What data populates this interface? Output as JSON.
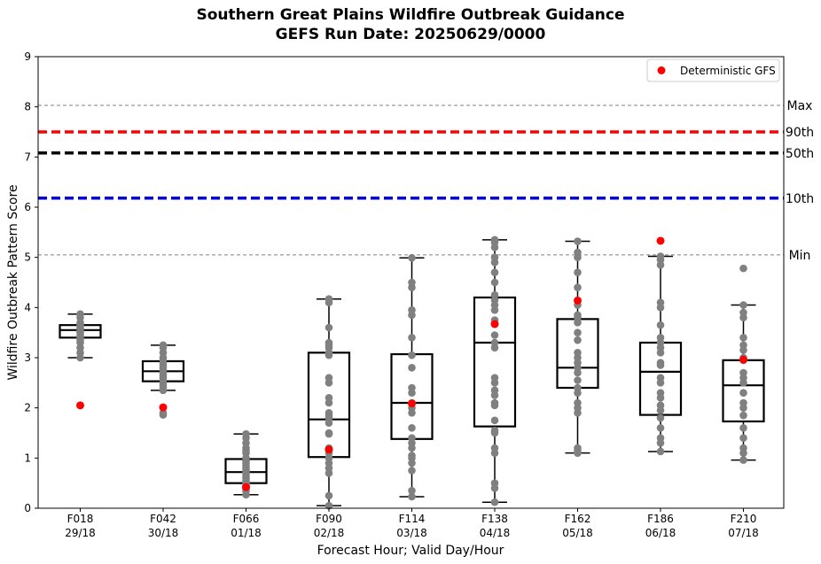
{
  "chart_data": {
    "type": "box",
    "title": "Southern Great Plains Wildfire Outbreak Guidance",
    "subtitle": "GEFS Run Date: 20250629/0000",
    "xlabel": "Forecast Hour; Valid Day/Hour",
    "ylabel": "Wildfire Outbreak Pattern Score",
    "ylim": [
      0,
      9
    ],
    "yticks": [
      "0",
      "1",
      "2",
      "3",
      "4",
      "5",
      "6",
      "7",
      "8",
      "9"
    ],
    "grid": false,
    "legend_position": "top-right",
    "categories": [
      [
        "F018",
        "29/18"
      ],
      [
        "F042",
        "30/18"
      ],
      [
        "F066",
        "01/18"
      ],
      [
        "F090",
        "02/18"
      ],
      [
        "F114",
        "03/18"
      ],
      [
        "F138",
        "04/18"
      ],
      [
        "F162",
        "05/18"
      ],
      [
        "F186",
        "06/18"
      ],
      [
        "F210",
        "07/18"
      ]
    ],
    "reference_lines": [
      {
        "label": "Max",
        "value": 8.03,
        "color": "#808080",
        "style": "thin-dashed"
      },
      {
        "label": "90th",
        "value": 7.5,
        "color": "#ff0000",
        "style": "thick-dashed"
      },
      {
        "label": "50th",
        "value": 7.08,
        "color": "#000000",
        "style": "thick-dashed"
      },
      {
        "label": "10th",
        "value": 6.18,
        "color": "#0000cd",
        "style": "thick-dashed"
      },
      {
        "label": "Min",
        "value": 5.05,
        "color": "#808080",
        "style": "thin-dashed"
      }
    ],
    "boxes": [
      {
        "whislo": 3.0,
        "q1": 3.4,
        "med": 3.55,
        "q3": 3.65,
        "whishi": 3.87
      },
      {
        "whislo": 2.35,
        "q1": 2.53,
        "med": 2.73,
        "q3": 2.93,
        "whishi": 3.25
      },
      {
        "whislo": 0.27,
        "q1": 0.5,
        "med": 0.72,
        "q3": 0.98,
        "whishi": 1.48
      },
      {
        "whislo": 0.05,
        "q1": 1.02,
        "med": 1.77,
        "q3": 3.1,
        "whishi": 4.17
      },
      {
        "whislo": 0.23,
        "q1": 1.38,
        "med": 2.1,
        "q3": 3.07,
        "whishi": 4.99
      },
      {
        "whislo": 0.12,
        "q1": 1.63,
        "med": 3.3,
        "q3": 4.2,
        "whishi": 5.35
      },
      {
        "whislo": 1.1,
        "q1": 2.4,
        "med": 2.8,
        "q3": 3.77,
        "whishi": 5.32
      },
      {
        "whislo": 1.13,
        "q1": 1.86,
        "med": 2.72,
        "q3": 3.3,
        "whishi": 5.02
      },
      {
        "whislo": 0.96,
        "q1": 1.73,
        "med": 2.45,
        "q3": 2.95,
        "whishi": 4.05
      }
    ],
    "members": [
      [
        3.87,
        3.8,
        3.7,
        3.65,
        3.6,
        3.58,
        3.55,
        3.52,
        3.5,
        3.45,
        3.4,
        3.35,
        3.3,
        3.2,
        3.1,
        3.0
      ],
      [
        3.25,
        3.2,
        3.1,
        3.0,
        2.95,
        2.9,
        2.85,
        2.8,
        2.75,
        2.7,
        2.65,
        2.6,
        2.55,
        2.5,
        2.45,
        2.4,
        2.35,
        1.9,
        1.86
      ],
      [
        1.48,
        1.4,
        1.3,
        1.2,
        1.15,
        1.1,
        1.0,
        0.95,
        0.9,
        0.85,
        0.8,
        0.75,
        0.72,
        0.7,
        0.65,
        0.6,
        0.55,
        0.5,
        0.45,
        0.4,
        0.35,
        0.27
      ],
      [
        4.17,
        4.1,
        3.6,
        3.3,
        3.25,
        3.2,
        3.1,
        3.05,
        2.6,
        2.5,
        2.2,
        2.1,
        1.9,
        1.85,
        1.8,
        1.7,
        1.5,
        1.48,
        1.2,
        1.1,
        1.0,
        0.9,
        0.8,
        0.7,
        0.25,
        0.05
      ],
      [
        4.99,
        4.5,
        4.4,
        3.95,
        3.85,
        3.4,
        3.05,
        2.8,
        2.4,
        2.3,
        2.1,
        2.0,
        1.9,
        1.6,
        1.4,
        1.3,
        1.2,
        1.05,
        1.0,
        0.9,
        0.75,
        0.35,
        0.23
      ],
      [
        5.35,
        5.3,
        5.2,
        5.0,
        4.9,
        4.7,
        4.5,
        4.25,
        4.15,
        4.05,
        3.95,
        3.75,
        3.45,
        3.3,
        3.2,
        2.6,
        2.5,
        2.35,
        2.25,
        2.1,
        2.05,
        1.75,
        1.55,
        1.5,
        1.2,
        1.1,
        0.5,
        0.4,
        0.12
      ],
      [
        5.32,
        5.1,
        5.0,
        4.7,
        4.4,
        4.05,
        3.85,
        3.8,
        3.7,
        3.5,
        3.35,
        3.1,
        3.0,
        2.9,
        2.8,
        2.7,
        2.55,
        2.4,
        2.3,
        2.1,
        2.0,
        1.9,
        1.2,
        1.15,
        1.1
      ],
      [
        5.02,
        4.95,
        4.85,
        4.1,
        4.0,
        3.65,
        3.4,
        3.3,
        3.2,
        3.1,
        2.9,
        2.85,
        2.6,
        2.5,
        2.3,
        2.2,
        2.05,
        1.95,
        1.8,
        1.6,
        1.4,
        1.3,
        1.13
      ],
      [
        4.78,
        4.05,
        3.9,
        3.8,
        3.4,
        3.25,
        3.15,
        3.0,
        2.95,
        2.7,
        2.6,
        2.5,
        2.3,
        2.1,
        2.0,
        1.85,
        1.6,
        1.4,
        1.2,
        1.1,
        0.96
      ]
    ],
    "deterministic": {
      "name": "Deterministic GFS",
      "color": "#ff0000",
      "values": [
        2.05,
        2.01,
        0.42,
        1.17,
        2.09,
        3.67,
        4.14,
        5.33,
        2.96
      ]
    },
    "member_color": "#808080"
  }
}
